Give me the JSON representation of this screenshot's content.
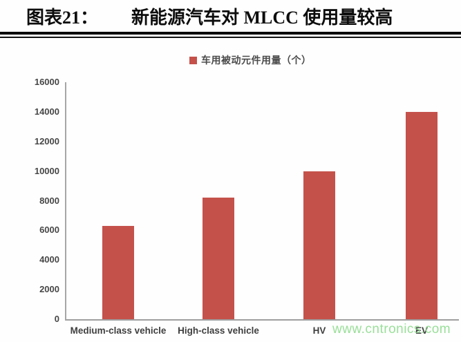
{
  "title": {
    "figure_label": "图表21：",
    "text": "新能源汽车对 MLCC 使用量较高"
  },
  "legend": {
    "label": "车用被动元件用量（个）",
    "marker_color": "#c5514b"
  },
  "chart_data": {
    "type": "bar",
    "title": "新能源汽车对 MLCC 使用量较高",
    "series_name": "车用被动元件用量（个）",
    "categories": [
      "Medium-class vehicle",
      "High-class vehicle",
      "HV",
      "EV"
    ],
    "values": [
      6300,
      8200,
      10000,
      14000
    ],
    "xlabel": "",
    "ylabel": "",
    "ylim": [
      0,
      16000
    ],
    "yticks": [
      0,
      2000,
      4000,
      6000,
      8000,
      10000,
      12000,
      14000,
      16000
    ],
    "bar_color": "#c5514b",
    "axis_color": "#a6a6a6",
    "grid": false,
    "legend_position": "top-center"
  },
  "watermark": {
    "text": "www.cntronics.com",
    "color": "#8fdc8f"
  }
}
